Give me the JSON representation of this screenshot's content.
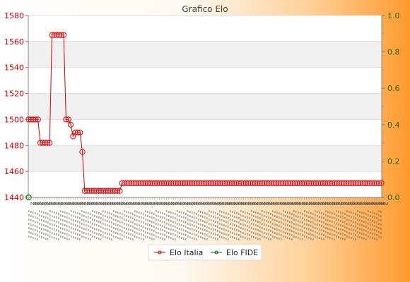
{
  "chart_data": {
    "type": "line",
    "title": "Grafico Elo",
    "y_left": {
      "min": 1440,
      "max": 1580,
      "ticks": [
        1440,
        1460,
        1480,
        1500,
        1520,
        1540,
        1560,
        1580
      ]
    },
    "y_right": {
      "min": 0.0,
      "max": 1.0,
      "ticks": [
        "0.0",
        "0.2",
        "0.4",
        "0.6",
        "0.8",
        "1.0"
      ]
    },
    "grid": true,
    "legend_position": "bottom",
    "series": [
      {
        "name": "Elo Italia",
        "color": "#e00000",
        "values": [
          1500,
          1500,
          1500,
          1500,
          1500,
          1482,
          1482,
          1482,
          1482,
          1482,
          1565,
          1565,
          1565,
          1565,
          1565,
          1565,
          1500,
          1500,
          1496,
          1487,
          1490,
          1490,
          1490,
          1475,
          1445,
          1445,
          1445,
          1445,
          1445,
          1445,
          1445,
          1445,
          1445,
          1445,
          1445,
          1445,
          1445,
          1445,
          1445,
          1445,
          1451,
          1451,
          1451,
          1451,
          1451,
          1451,
          1451,
          1451,
          1451,
          1451,
          1451,
          1451,
          1451,
          1451,
          1451,
          1451,
          1451,
          1451,
          1451,
          1451,
          1451,
          1451,
          1451,
          1451,
          1451,
          1451,
          1451,
          1451,
          1451,
          1451,
          1451,
          1451,
          1451,
          1451,
          1451,
          1451,
          1451,
          1451,
          1451,
          1451,
          1451,
          1451,
          1451,
          1451,
          1451,
          1451,
          1451,
          1451,
          1451,
          1451,
          1451,
          1451,
          1451,
          1451,
          1451,
          1451,
          1451,
          1451,
          1451,
          1451,
          1451,
          1451,
          1451,
          1451,
          1451,
          1451,
          1451,
          1451,
          1451,
          1451,
          1451,
          1451,
          1451,
          1451,
          1451,
          1451,
          1451,
          1451,
          1451,
          1451,
          1451,
          1451,
          1451,
          1451,
          1451,
          1451,
          1451,
          1451,
          1451,
          1451,
          1451,
          1451,
          1451,
          1451,
          1451,
          1451,
          1451,
          1451,
          1451,
          1451,
          1451,
          1451,
          1451,
          1451,
          1451,
          1451,
          1451,
          1451,
          1451,
          1451,
          1451,
          1451
        ]
      },
      {
        "name": "Elo FIDE",
        "color": "#007000",
        "values": [
          0
        ]
      }
    ]
  }
}
